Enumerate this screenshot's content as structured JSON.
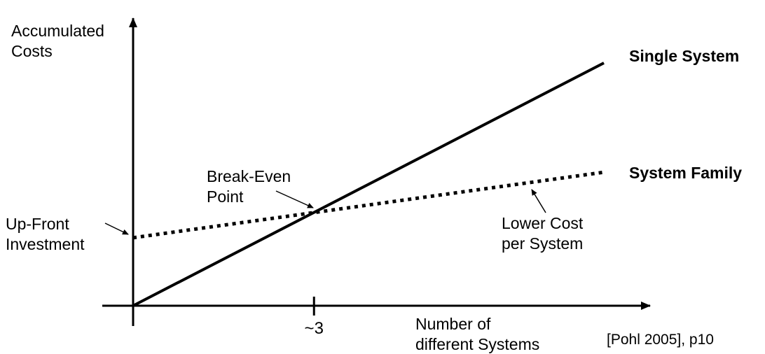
{
  "figure": {
    "y_axis_label": "Accumulated\nCosts",
    "x_axis_label": "Number of\ndifferent Systems",
    "single_system_label": "Single System",
    "system_family_label": "System Family",
    "break_even_annotation": "Break-Even\nPoint",
    "up_front_annotation": "Up-Front\nInvestment",
    "lower_cost_annotation": "Lower Cost\nper System",
    "tick_label": "~3",
    "citation": "[Pohl 2005], p10"
  },
  "chart_data": {
    "type": "line",
    "title": "",
    "xlabel": "Number of different Systems",
    "ylabel": "Accumulated Costs",
    "x_range": [
      0,
      7
    ],
    "y_range": [
      0,
      120
    ],
    "grid": false,
    "legend": "inline labels at right ends of lines",
    "series": [
      {
        "name": "Single System",
        "line_style": "solid",
        "color": "#000000",
        "points": [
          [
            0,
            0
          ],
          [
            7,
            100
          ]
        ]
      },
      {
        "name": "System Family",
        "line_style": "dotted",
        "color": "#000000",
        "points": [
          [
            0,
            28
          ],
          [
            7,
            55
          ]
        ]
      }
    ],
    "break_even_x": 2.69,
    "break_even_label": "~3",
    "annotations": [
      {
        "text": "Up-Front Investment",
        "target": "y-intercept of System Family line"
      },
      {
        "text": "Break-Even Point",
        "target": "intersection of the two lines"
      },
      {
        "text": "Lower Cost per System",
        "target": "System Family line (shallow slope)"
      }
    ],
    "citation": "[Pohl 2005], p10"
  }
}
